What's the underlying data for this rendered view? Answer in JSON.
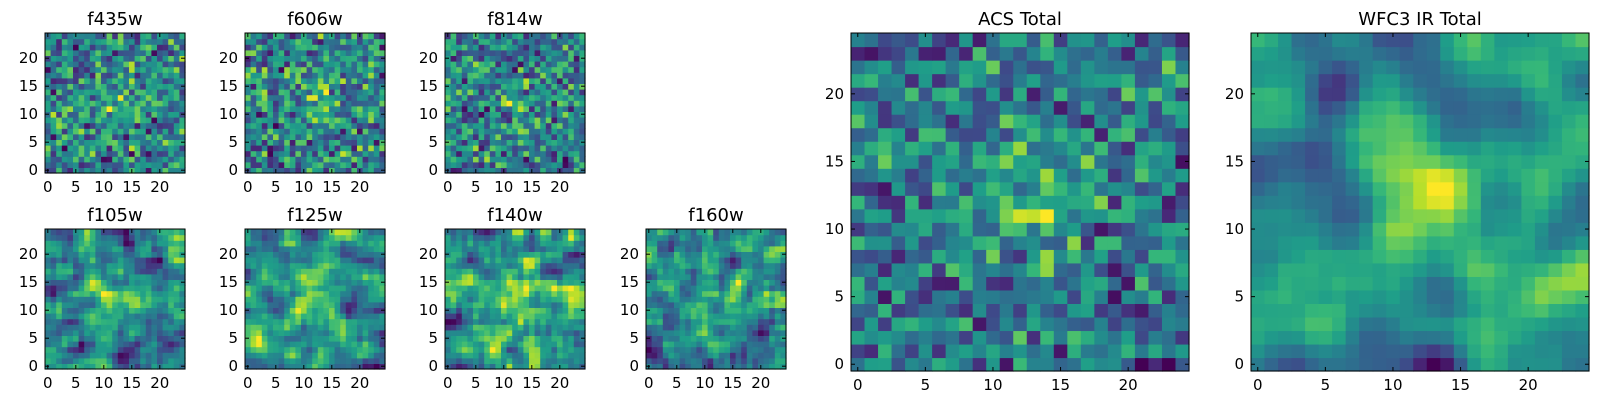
{
  "chart_data": [
    {
      "type": "heatmap",
      "title": "f435w",
      "xticks": [
        0,
        5,
        10,
        15,
        20
      ],
      "yticks": [
        0,
        5,
        10,
        15,
        20
      ],
      "xlim": [
        -0.5,
        24.5
      ],
      "ylim": [
        -0.5,
        24.5
      ],
      "grid_size": 25,
      "colormap": "viridis",
      "seed": 11,
      "smooth": 0,
      "blob": 0.35
    },
    {
      "type": "heatmap",
      "title": "f606w",
      "xticks": [
        0,
        5,
        10,
        15,
        20
      ],
      "yticks": [
        0,
        5,
        10,
        15,
        20
      ],
      "xlim": [
        -0.5,
        24.5
      ],
      "ylim": [
        -0.5,
        24.5
      ],
      "grid_size": 25,
      "colormap": "viridis",
      "seed": 23,
      "smooth": 0,
      "blob": 0.35
    },
    {
      "type": "heatmap",
      "title": "f814w",
      "xticks": [
        0,
        5,
        10,
        15,
        20
      ],
      "yticks": [
        0,
        5,
        10,
        15,
        20
      ],
      "xlim": [
        -0.5,
        24.5
      ],
      "ylim": [
        -0.5,
        24.5
      ],
      "grid_size": 25,
      "colormap": "viridis",
      "seed": 37,
      "smooth": 0,
      "blob": 0.45
    },
    {
      "type": "heatmap",
      "title": "f105w",
      "xticks": [
        0,
        5,
        10,
        15,
        20
      ],
      "yticks": [
        0,
        5,
        10,
        15,
        20
      ],
      "xlim": [
        -0.5,
        24.5
      ],
      "ylim": [
        -0.5,
        24.5
      ],
      "grid_size": 25,
      "colormap": "viridis",
      "seed": 41,
      "smooth": 1,
      "blob": 0.55
    },
    {
      "type": "heatmap",
      "title": "f125w",
      "xticks": [
        0,
        5,
        10,
        15,
        20
      ],
      "yticks": [
        0,
        5,
        10,
        15,
        20
      ],
      "xlim": [
        -0.5,
        24.5
      ],
      "ylim": [
        -0.5,
        24.5
      ],
      "grid_size": 25,
      "colormap": "viridis",
      "seed": 53,
      "smooth": 1,
      "blob": 0.55
    },
    {
      "type": "heatmap",
      "title": "f140w",
      "xticks": [
        0,
        5,
        10,
        15,
        20
      ],
      "yticks": [
        0,
        5,
        10,
        15,
        20
      ],
      "xlim": [
        -0.5,
        24.5
      ],
      "ylim": [
        -0.5,
        24.5
      ],
      "grid_size": 25,
      "colormap": "viridis",
      "seed": 67,
      "smooth": 1,
      "blob": 0.65
    },
    {
      "type": "heatmap",
      "title": "f160w",
      "xticks": [
        0,
        5,
        10,
        15,
        20
      ],
      "yticks": [
        0,
        5,
        10,
        15,
        20
      ],
      "xlim": [
        -0.5,
        24.5
      ],
      "ylim": [
        -0.5,
        24.5
      ],
      "grid_size": 25,
      "colormap": "viridis",
      "seed": 79,
      "smooth": 1,
      "blob": 0.55
    },
    {
      "type": "heatmap",
      "title": "ACS Total",
      "xticks": [
        0,
        5,
        10,
        15,
        20
      ],
      "yticks": [
        0,
        5,
        10,
        15,
        20
      ],
      "xlim": [
        -0.5,
        24.5
      ],
      "ylim": [
        -0.5,
        24.5
      ],
      "grid_size": 25,
      "colormap": "viridis",
      "seed": 83,
      "smooth": 0,
      "blob": 0.8
    },
    {
      "type": "heatmap",
      "title": "WFC3 IR Total",
      "xticks": [
        0,
        5,
        10,
        15,
        20
      ],
      "yticks": [
        0,
        5,
        10,
        15,
        20
      ],
      "xlim": [
        -0.5,
        24.5
      ],
      "ylim": [
        -0.5,
        24.5
      ],
      "grid_size": 25,
      "colormap": "viridis",
      "seed": 97,
      "smooth": 2,
      "blob": 1.3
    }
  ]
}
